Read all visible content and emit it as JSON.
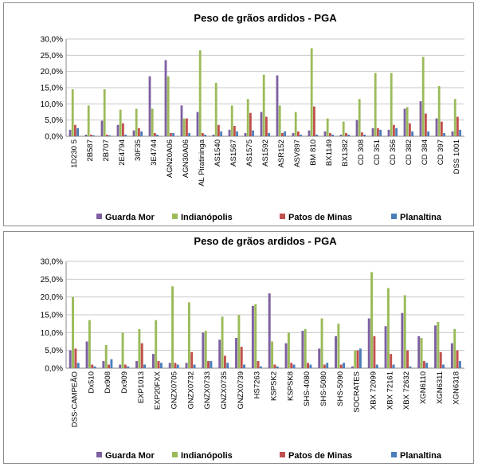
{
  "colors": {
    "Guarda Mor": "#7d60a0",
    "Indianópolis": "#9bbb59",
    "Patos de Minas": "#c0504d",
    "Planaltina": "#4a7ebb"
  },
  "chart_data": [
    {
      "type": "bar",
      "title": "Peso de grãos ardidos - PGA",
      "ylim": [
        0,
        30
      ],
      "y_ticks": [
        "0,0%",
        "5,0%",
        "10,0%",
        "15,0%",
        "20,0%",
        "25,0%",
        "30,0%"
      ],
      "legend_position": "bottom",
      "grid": true,
      "categories": [
        "1D230 5",
        "2B587",
        "2B707",
        "2E4794",
        "30F35",
        "3E4744",
        "AGN20A06",
        "AGN30A06",
        "AL Piratininga",
        "AS1540",
        "AS1567",
        "AS1575",
        "AS1592",
        "ASR152",
        "ASV897",
        "BM 810",
        "BX1149",
        "BX1382",
        "CD 308",
        "CD 351",
        "CD 356",
        "CD 382",
        "CD 384",
        "CD 397",
        "DSS 1001"
      ],
      "series": [
        {
          "name": "Guarda Mor",
          "values": [
            2.0,
            0.5,
            4.8,
            3.5,
            1.8,
            18.5,
            23.5,
            9.5,
            7.5,
            0.5,
            2.0,
            1.0,
            7.5,
            18.8,
            1.0,
            1.8,
            1.5,
            0.5,
            5.0,
            2.5,
            2.0,
            8.5,
            10.8,
            5.5,
            1.5
          ]
        },
        {
          "name": "Indianópolis",
          "values": [
            14.5,
            9.5,
            14.5,
            8.2,
            8.5,
            8.5,
            18.5,
            5.5,
            26.5,
            16.5,
            9.5,
            11.5,
            19.0,
            9.5,
            7.5,
            27.2,
            5.5,
            4.5,
            11.5,
            19.5,
            19.5,
            9.0,
            24.5,
            15.5,
            11.5
          ]
        },
        {
          "name": "Patos de Minas",
          "values": [
            3.5,
            0.5,
            0.5,
            4.0,
            2.5,
            1.0,
            1.0,
            5.5,
            1.0,
            3.5,
            3.2,
            7.2,
            6.0,
            1.0,
            1.5,
            9.2,
            1.0,
            1.0,
            1.2,
            2.5,
            3.5,
            4.0,
            7.0,
            4.5,
            6.0
          ]
        },
        {
          "name": "Planaltina",
          "values": [
            2.5,
            0.3,
            0.3,
            0.5,
            1.5,
            0.5,
            1.0,
            1.0,
            0.5,
            1.5,
            1.5,
            1.8,
            1.0,
            1.5,
            0.5,
            0.5,
            0.5,
            0.5,
            0.5,
            2.0,
            2.5,
            1.5,
            1.5,
            1.0,
            2.0
          ]
        }
      ]
    },
    {
      "type": "bar",
      "title": "Peso de grãos ardidos - PGA",
      "ylim": [
        0,
        30
      ],
      "y_ticks": [
        "0,0%",
        "5,0%",
        "10,0%",
        "15,0%",
        "20,0%",
        "25,0%",
        "30,0%"
      ],
      "legend_position": "bottom",
      "grid": true,
      "categories": [
        "DSS-CAMPEÃO",
        "Dx510",
        "Dx908",
        "Dx909",
        "EXP1013",
        "EXP20FXX",
        "GNZX0705",
        "GNZX0732",
        "GNZX0733",
        "GNZX0735",
        "GNZX0739",
        "HS7263",
        "KSPSK2",
        "KSPSK8",
        "SHS-4080",
        "SHS-5080",
        "SHS-5090",
        "SOCRATES",
        "XBX 72099",
        "XBX 72161",
        "XBX 72632",
        "XGN6110",
        "XGN6311",
        "XGN6318"
      ],
      "series": [
        {
          "name": "Guarda Mor",
          "values": [
            5.0,
            7.5,
            2.0,
            1.0,
            2.0,
            4.0,
            1.5,
            1.5,
            10.0,
            8.0,
            8.5,
            17.5,
            21.0,
            7.0,
            10.5,
            5.5,
            9.0,
            0.5,
            14.0,
            11.8,
            15.5,
            9.0,
            12.0,
            7.0
          ]
        },
        {
          "name": "Indianópolis",
          "values": [
            20.0,
            13.5,
            6.5,
            10.0,
            11.0,
            13.5,
            23.0,
            18.5,
            10.5,
            14.5,
            15.0,
            18.0,
            7.5,
            10.0,
            11.0,
            14.0,
            12.5,
            5.0,
            27.0,
            22.5,
            20.5,
            8.5,
            13.0,
            11.0
          ]
        },
        {
          "name": "Patos de Minas",
          "values": [
            5.5,
            1.0,
            1.0,
            1.0,
            7.0,
            2.0,
            1.5,
            4.5,
            2.0,
            3.5,
            6.0,
            2.0,
            1.0,
            1.5,
            1.5,
            1.0,
            1.0,
            5.0,
            9.0,
            4.0,
            5.0,
            2.0,
            4.5,
            5.0
          ]
        },
        {
          "name": "Planaltina",
          "values": [
            1.5,
            0.5,
            2.5,
            0.5,
            1.0,
            1.5,
            1.0,
            1.0,
            2.0,
            1.5,
            1.0,
            0.5,
            0.5,
            1.0,
            1.0,
            1.5,
            1.5,
            5.5,
            1.0,
            1.0,
            0.5,
            1.5,
            1.0,
            2.0
          ]
        }
      ]
    }
  ]
}
